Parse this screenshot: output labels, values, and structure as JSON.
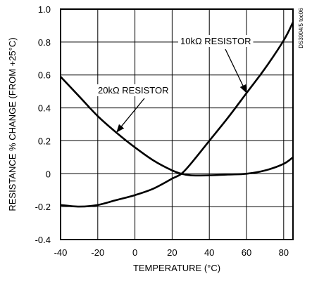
{
  "chart_data": {
    "type": "line",
    "xlabel": "TEMPERATURE (°C)",
    "ylabel": "RESISTANCE % CHANGE (FROM +25°C)",
    "xlim": [
      -40,
      85
    ],
    "ylim": [
      -0.4,
      1.0
    ],
    "grid": true,
    "x_ticks": [
      -40,
      -20,
      0,
      20,
      40,
      60,
      80
    ],
    "y_ticks": [
      -0.4,
      -0.2,
      0,
      0.2,
      0.4,
      0.6,
      0.8,
      1.0
    ],
    "x_tick_labels": [
      "-40",
      "-20",
      "0",
      "20",
      "40",
      "60",
      "80"
    ],
    "y_tick_labels": [
      "-0.4",
      "-0.2",
      "0",
      "0.2",
      "0.4",
      "0.6",
      "0.8",
      "1.0"
    ],
    "series": [
      {
        "name": "10kΩ RESISTOR",
        "x": [
          -40,
          -30,
          -20,
          -10,
          0,
          10,
          20,
          25,
          30,
          40,
          50,
          60,
          70,
          80,
          85
        ],
        "y": [
          -0.19,
          -0.2,
          -0.19,
          -0.16,
          -0.13,
          -0.09,
          -0.03,
          0.0,
          0.06,
          0.2,
          0.34,
          0.49,
          0.64,
          0.81,
          0.92
        ]
      },
      {
        "name": "20kΩ RESISTOR",
        "x": [
          -40,
          -30,
          -20,
          -10,
          0,
          10,
          20,
          25,
          30,
          40,
          50,
          60,
          70,
          80,
          85
        ],
        "y": [
          0.59,
          0.47,
          0.35,
          0.25,
          0.16,
          0.08,
          0.02,
          0.0,
          -0.01,
          -0.01,
          -0.005,
          0.0,
          0.02,
          0.06,
          0.1
        ]
      }
    ],
    "annotations": [
      {
        "text": "10kΩ RESISTOR",
        "series": 0,
        "arrow_to_x": 60
      },
      {
        "text": "20kΩ RESISTOR",
        "series": 1,
        "arrow_to_x": -10
      }
    ],
    "side_text": "DS3904/5 toc06"
  }
}
